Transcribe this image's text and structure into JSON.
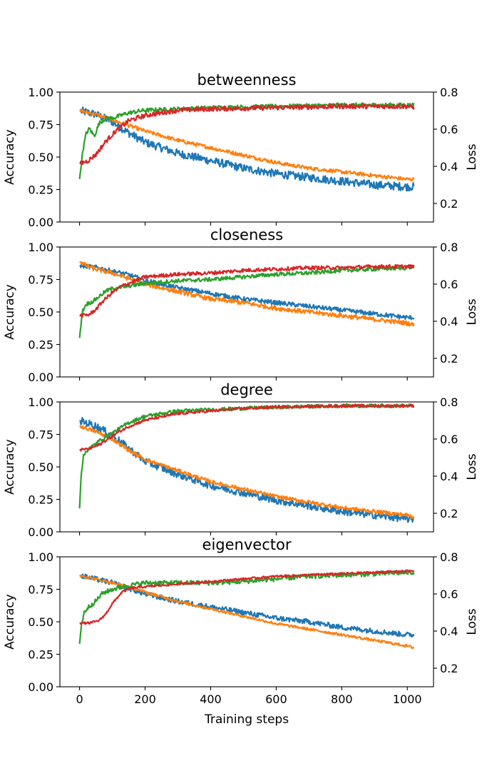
{
  "chart_data": [
    {
      "type": "line",
      "title": "betweenness",
      "ylabel": "Accuracy",
      "y2label": "Loss",
      "xlabel": "",
      "xlim": [
        -60,
        1080
      ],
      "ylim": [
        0,
        1
      ],
      "y2lim": [
        0.1,
        0.8
      ],
      "x_ticks": [
        0,
        200,
        400,
        600,
        800,
        1000
      ],
      "y_ticks": [
        "0.00",
        "0.25",
        "0.50",
        "0.75",
        "1.00"
      ],
      "y2_ticks": [
        "0.2",
        "0.4",
        "0.6",
        "0.8"
      ],
      "series": [
        {
          "axis": "right",
          "color": "#1f77b4",
          "noise": 0.022,
          "x": [
            0,
            50,
            100,
            150,
            200,
            300,
            400,
            500,
            600,
            700,
            800,
            900,
            1000,
            1020
          ],
          "values": [
            0.7,
            0.68,
            0.64,
            0.58,
            0.53,
            0.47,
            0.43,
            0.39,
            0.36,
            0.34,
            0.32,
            0.3,
            0.29,
            0.29
          ]
        },
        {
          "axis": "right",
          "color": "#ff7f0e",
          "noise": 0.01,
          "x": [
            0,
            50,
            100,
            150,
            200,
            300,
            400,
            500,
            600,
            700,
            800,
            900,
            1000,
            1020
          ],
          "values": [
            0.7,
            0.68,
            0.65,
            0.62,
            0.59,
            0.54,
            0.5,
            0.46,
            0.42,
            0.39,
            0.37,
            0.35,
            0.33,
            0.33
          ]
        },
        {
          "axis": "left",
          "color": "#2ca02c",
          "noise": 0.016,
          "x": [
            0,
            10,
            20,
            30,
            45,
            60,
            80,
            100,
            150,
            200,
            300,
            400,
            600,
            800,
            1000,
            1020
          ],
          "values": [
            0.33,
            0.55,
            0.68,
            0.72,
            0.66,
            0.76,
            0.8,
            0.8,
            0.84,
            0.86,
            0.87,
            0.88,
            0.89,
            0.9,
            0.9,
            0.9
          ]
        },
        {
          "axis": "left",
          "color": "#d62728",
          "noise": 0.018,
          "x": [
            0,
            25,
            50,
            80,
            110,
            150,
            200,
            300,
            400,
            600,
            800,
            1000,
            1020
          ],
          "values": [
            0.45,
            0.47,
            0.52,
            0.62,
            0.7,
            0.78,
            0.82,
            0.86,
            0.87,
            0.88,
            0.89,
            0.89,
            0.88
          ]
        }
      ]
    },
    {
      "type": "line",
      "title": "closeness",
      "ylabel": "Accuracy",
      "y2label": "Loss",
      "xlabel": "",
      "xlim": [
        -60,
        1080
      ],
      "ylim": [
        0,
        1
      ],
      "y2lim": [
        0.1,
        0.8
      ],
      "x_ticks": [
        0,
        200,
        400,
        600,
        800,
        1000
      ],
      "y_ticks": [
        "0.00",
        "0.25",
        "0.50",
        "0.75",
        "1.00"
      ],
      "y2_ticks": [
        "0.2",
        "0.4",
        "0.6",
        "0.8"
      ],
      "series": [
        {
          "axis": "right",
          "color": "#1f77b4",
          "noise": 0.012,
          "x": [
            0,
            50,
            100,
            150,
            200,
            300,
            400,
            500,
            600,
            700,
            800,
            900,
            1000,
            1020
          ],
          "values": [
            0.7,
            0.69,
            0.67,
            0.65,
            0.62,
            0.58,
            0.55,
            0.52,
            0.5,
            0.48,
            0.46,
            0.44,
            0.42,
            0.42
          ]
        },
        {
          "axis": "right",
          "color": "#ff7f0e",
          "noise": 0.012,
          "x": [
            0,
            20,
            50,
            100,
            150,
            200,
            300,
            400,
            500,
            600,
            700,
            800,
            900,
            1000,
            1020
          ],
          "values": [
            0.72,
            0.7,
            0.68,
            0.66,
            0.63,
            0.6,
            0.56,
            0.52,
            0.5,
            0.47,
            0.45,
            0.43,
            0.41,
            0.39,
            0.38
          ]
        },
        {
          "axis": "left",
          "color": "#2ca02c",
          "noise": 0.015,
          "x": [
            0,
            8,
            20,
            40,
            60,
            80,
            100,
            150,
            200,
            300,
            400,
            500,
            600,
            700,
            800,
            900,
            1000,
            1020
          ],
          "values": [
            0.3,
            0.5,
            0.56,
            0.58,
            0.62,
            0.66,
            0.68,
            0.7,
            0.72,
            0.74,
            0.75,
            0.77,
            0.79,
            0.8,
            0.82,
            0.83,
            0.84,
            0.85
          ]
        },
        {
          "axis": "left",
          "color": "#d62728",
          "noise": 0.014,
          "x": [
            0,
            30,
            50,
            70,
            100,
            130,
            160,
            200,
            300,
            400,
            500,
            600,
            700,
            800,
            900,
            1000,
            1020
          ],
          "values": [
            0.47,
            0.48,
            0.52,
            0.58,
            0.65,
            0.7,
            0.73,
            0.77,
            0.79,
            0.8,
            0.82,
            0.83,
            0.84,
            0.84,
            0.85,
            0.85,
            0.85
          ]
        }
      ]
    },
    {
      "type": "line",
      "title": "degree",
      "ylabel": "Accuracy",
      "y2label": "Loss",
      "xlabel": "",
      "xlim": [
        -60,
        1080
      ],
      "ylim": [
        0,
        1
      ],
      "y2lim": [
        0.1,
        0.8
      ],
      "x_ticks": [
        0,
        200,
        400,
        600,
        800,
        1000
      ],
      "y_ticks": [
        "0.00",
        "0.25",
        "0.50",
        "0.75",
        "1.00"
      ],
      "y2_ticks": [
        "0.2",
        "0.4",
        "0.6",
        "0.8"
      ],
      "series": [
        {
          "axis": "right",
          "color": "#1f77b4",
          "noise": 0.02,
          "x": [
            0,
            50,
            100,
            150,
            200,
            300,
            400,
            500,
            600,
            700,
            800,
            900,
            1000,
            1020
          ],
          "values": [
            0.7,
            0.67,
            0.62,
            0.55,
            0.48,
            0.41,
            0.35,
            0.31,
            0.27,
            0.24,
            0.21,
            0.19,
            0.17,
            0.17
          ]
        },
        {
          "axis": "right",
          "color": "#ff7f0e",
          "noise": 0.01,
          "x": [
            0,
            50,
            100,
            150,
            200,
            300,
            400,
            500,
            600,
            700,
            800,
            900,
            1000,
            1020
          ],
          "values": [
            0.67,
            0.64,
            0.6,
            0.54,
            0.49,
            0.43,
            0.37,
            0.33,
            0.29,
            0.26,
            0.23,
            0.21,
            0.19,
            0.18
          ]
        },
        {
          "axis": "left",
          "color": "#2ca02c",
          "noise": 0.014,
          "x": [
            0,
            5,
            12,
            20,
            40,
            60,
            80,
            100,
            150,
            200,
            300,
            400,
            500,
            600,
            800,
            1000,
            1020
          ],
          "values": [
            0.18,
            0.45,
            0.58,
            0.62,
            0.66,
            0.7,
            0.73,
            0.76,
            0.84,
            0.89,
            0.93,
            0.94,
            0.95,
            0.96,
            0.97,
            0.97,
            0.97
          ]
        },
        {
          "axis": "left",
          "color": "#d62728",
          "noise": 0.01,
          "x": [
            0,
            30,
            60,
            90,
            120,
            150,
            200,
            300,
            400,
            500,
            600,
            800,
            1000,
            1020
          ],
          "values": [
            0.63,
            0.64,
            0.67,
            0.72,
            0.77,
            0.81,
            0.86,
            0.91,
            0.93,
            0.95,
            0.96,
            0.97,
            0.97,
            0.97
          ]
        }
      ]
    },
    {
      "type": "line",
      "title": "eigenvector",
      "ylabel": "Accuracy",
      "y2label": "Loss",
      "xlabel": "Training steps",
      "xlim": [
        -60,
        1080
      ],
      "ylim": [
        0,
        1
      ],
      "y2lim": [
        0.1,
        0.8
      ],
      "x_ticks": [
        0,
        200,
        400,
        600,
        800,
        1000
      ],
      "y_ticks": [
        "0.00",
        "0.25",
        "0.50",
        "0.75",
        "1.00"
      ],
      "y2_ticks": [
        "0.2",
        "0.4",
        "0.6",
        "0.8"
      ],
      "series": [
        {
          "axis": "right",
          "color": "#1f77b4",
          "noise": 0.014,
          "x": [
            0,
            50,
            100,
            150,
            200,
            300,
            400,
            500,
            600,
            700,
            800,
            900,
            1000,
            1020
          ],
          "values": [
            0.7,
            0.68,
            0.66,
            0.63,
            0.6,
            0.56,
            0.53,
            0.5,
            0.47,
            0.45,
            0.42,
            0.4,
            0.38,
            0.38
          ]
        },
        {
          "axis": "right",
          "color": "#ff7f0e",
          "noise": 0.007,
          "x": [
            0,
            50,
            100,
            150,
            200,
            300,
            400,
            500,
            600,
            700,
            800,
            900,
            1000,
            1020
          ],
          "values": [
            0.7,
            0.68,
            0.66,
            0.64,
            0.61,
            0.56,
            0.52,
            0.48,
            0.44,
            0.41,
            0.38,
            0.35,
            0.32,
            0.31
          ]
        },
        {
          "axis": "left",
          "color": "#2ca02c",
          "noise": 0.018,
          "x": [
            0,
            6,
            15,
            30,
            50,
            70,
            100,
            150,
            200,
            300,
            400,
            500,
            600,
            700,
            800,
            900,
            1000,
            1020
          ],
          "values": [
            0.33,
            0.48,
            0.58,
            0.62,
            0.66,
            0.72,
            0.75,
            0.78,
            0.8,
            0.8,
            0.8,
            0.81,
            0.83,
            0.85,
            0.86,
            0.87,
            0.88,
            0.88
          ]
        },
        {
          "axis": "left",
          "color": "#d62728",
          "noise": 0.008,
          "x": [
            0,
            30,
            60,
            80,
            100,
            130,
            160,
            200,
            300,
            400,
            500,
            600,
            700,
            800,
            900,
            1000,
            1020
          ],
          "values": [
            0.49,
            0.49,
            0.51,
            0.56,
            0.64,
            0.73,
            0.76,
            0.77,
            0.79,
            0.81,
            0.83,
            0.85,
            0.86,
            0.87,
            0.88,
            0.89,
            0.89
          ]
        }
      ]
    }
  ]
}
